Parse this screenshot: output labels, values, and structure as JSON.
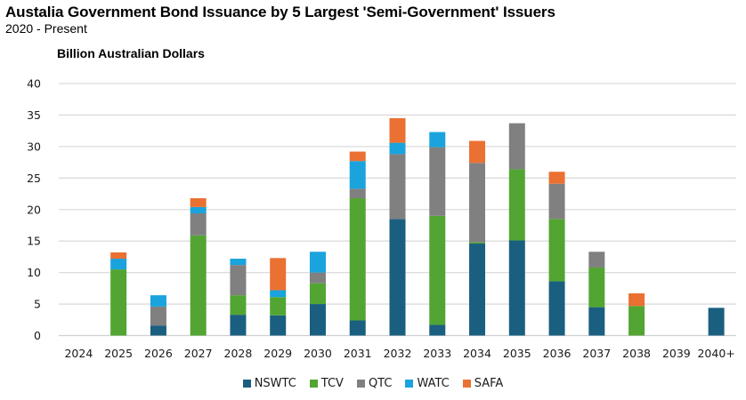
{
  "chart_data": {
    "type": "bar",
    "stacked": true,
    "title": "Austalia Government Bond Issuance by 5 Largest 'Semi-Government' Issuers",
    "subtitle": "2020 - Present",
    "ylabel": "Billion Australian Dollars",
    "xlabel": "",
    "ylim": [
      0,
      40
    ],
    "yticks": [
      "0",
      "5",
      "10",
      "15",
      "20",
      "25",
      "30",
      "35",
      "40"
    ],
    "grid": true,
    "legend_position": "bottom",
    "categories": [
      "2024",
      "2025",
      "2026",
      "2027",
      "2028",
      "2029",
      "2030",
      "2031",
      "2032",
      "2033",
      "2034",
      "2035",
      "2036",
      "2037",
      "2038",
      "2039",
      "2040+"
    ],
    "series": [
      {
        "name": "NSWTC",
        "color": "#1a5f80",
        "values": [
          0,
          0,
          1.6,
          0,
          3.3,
          3.2,
          5.0,
          2.4,
          18.5,
          1.7,
          14.6,
          15.1,
          8.6,
          4.5,
          0,
          0,
          4.4
        ]
      },
      {
        "name": "TCV",
        "color": "#52a532",
        "values": [
          0,
          10.5,
          0,
          15.9,
          3.1,
          2.9,
          3.3,
          19.4,
          0,
          17.3,
          0.2,
          11.3,
          9.9,
          6.3,
          4.7,
          0,
          0
        ]
      },
      {
        "name": "QTC",
        "color": "#808080",
        "values": [
          0,
          0,
          3.0,
          3.5,
          4.8,
          0,
          1.7,
          1.5,
          10.3,
          10.9,
          12.6,
          7.3,
          5.6,
          2.5,
          0,
          0,
          0
        ]
      },
      {
        "name": "WATC",
        "color": "#1aa3dd",
        "values": [
          0,
          1.7,
          1.8,
          1.0,
          1.0,
          1.1,
          3.3,
          4.4,
          1.8,
          2.4,
          0,
          0,
          0,
          0,
          0,
          0,
          0
        ]
      },
      {
        "name": "SAFA",
        "color": "#ea7132",
        "values": [
          0,
          1.0,
          0,
          1.4,
          0,
          5.1,
          0,
          1.5,
          3.9,
          0,
          3.5,
          0,
          1.9,
          0,
          2.0,
          0,
          0
        ]
      }
    ]
  }
}
